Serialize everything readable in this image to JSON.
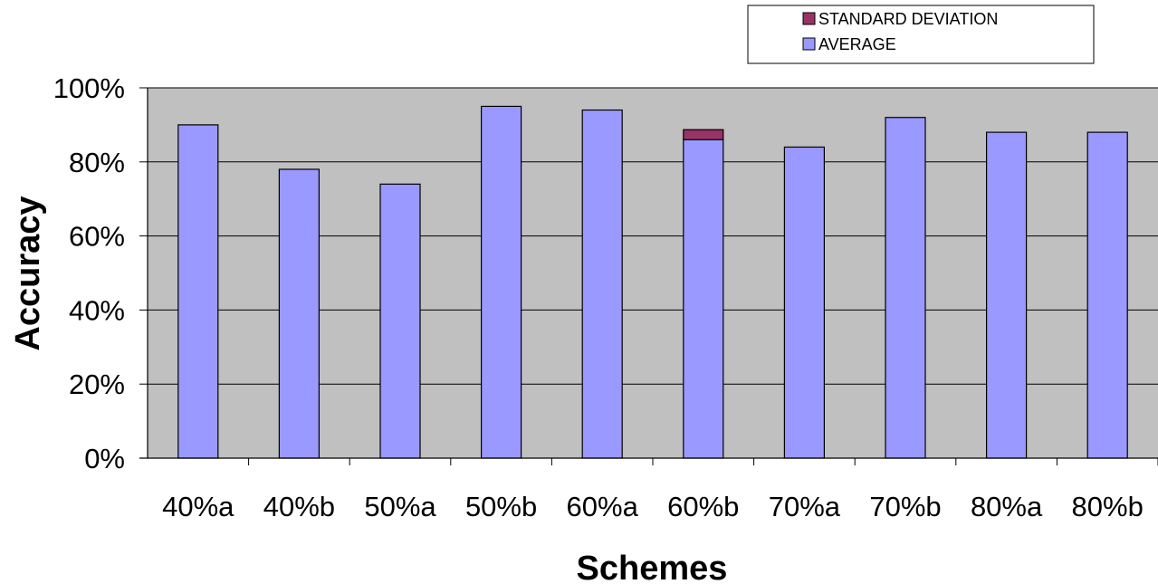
{
  "chart_data": {
    "type": "bar",
    "stacked": true,
    "xlabel": "Schemes",
    "ylabel": "Accuracy",
    "ylim": [
      0,
      100
    ],
    "yticks": [
      "0%",
      "20%",
      "40%",
      "60%",
      "80%",
      "100%"
    ],
    "grid": true,
    "legend_position": "top-right",
    "categories": [
      "40%a",
      "40%b",
      "50%a",
      "50%b",
      "60%a",
      "60%b",
      "70%a",
      "70%b",
      "80%a",
      "80%b"
    ],
    "series": [
      {
        "name": "AVERAGE",
        "color": "#9999ff",
        "values": [
          90,
          78,
          74,
          95,
          94,
          86,
          84,
          92,
          88,
          88
        ]
      },
      {
        "name": "STANDARD DEVIATION",
        "color": "#993366",
        "values": [
          0,
          0,
          0,
          0,
          0,
          2.7,
          0,
          0,
          0,
          0
        ]
      }
    ],
    "legend_order": [
      "STANDARD DEVIATION",
      "AVERAGE"
    ],
    "plot_background": "#c0c0c0"
  }
}
